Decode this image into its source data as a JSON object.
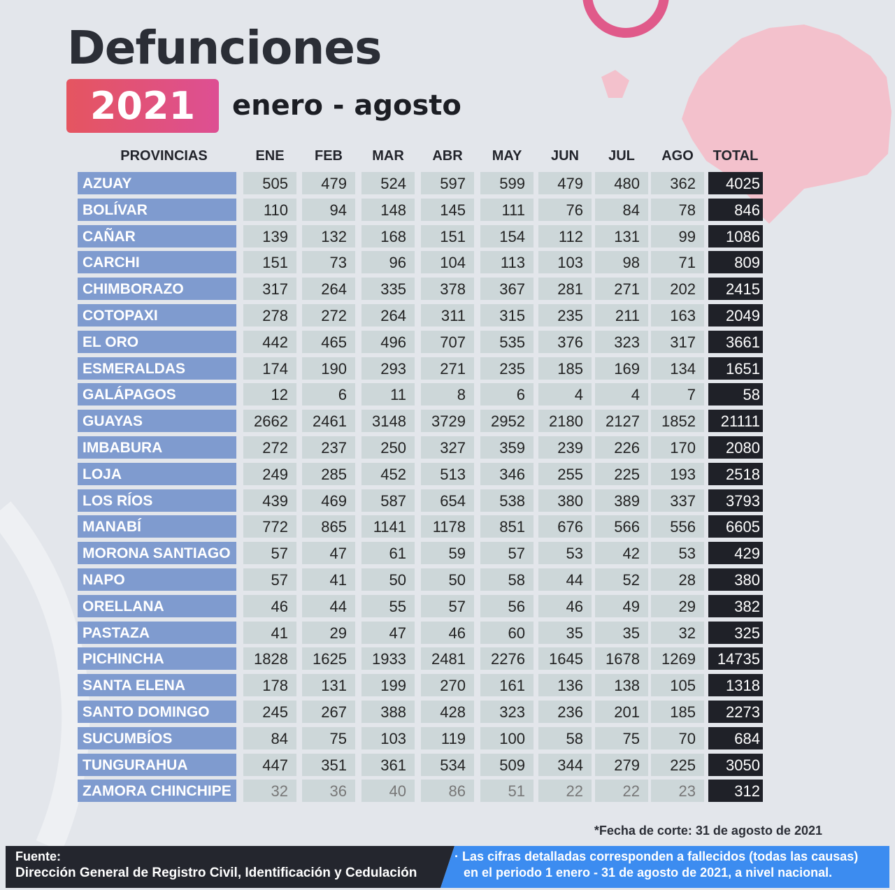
{
  "header": {
    "title": "Defunciones",
    "year": "2021",
    "period": "enero - agosto"
  },
  "table": {
    "columns": [
      "PROVINCIAS",
      "ENE",
      "FEB",
      "MAR",
      "ABR",
      "MAY",
      "JUN",
      "JUL",
      "AGO",
      "TOTAL"
    ],
    "rows": [
      [
        "AZUAY",
        505,
        479,
        524,
        597,
        599,
        479,
        480,
        362,
        4025
      ],
      [
        "BOLÍVAR",
        110,
        94,
        148,
        145,
        111,
        76,
        84,
        78,
        846
      ],
      [
        "CAÑAR",
        139,
        132,
        168,
        151,
        154,
        112,
        131,
        99,
        1086
      ],
      [
        "CARCHI",
        151,
        73,
        96,
        104,
        113,
        103,
        98,
        71,
        809
      ],
      [
        "CHIMBORAZO",
        317,
        264,
        335,
        378,
        367,
        281,
        271,
        202,
        2415
      ],
      [
        "COTOPAXI",
        278,
        272,
        264,
        311,
        315,
        235,
        211,
        163,
        2049
      ],
      [
        "EL ORO",
        442,
        465,
        496,
        707,
        535,
        376,
        323,
        317,
        3661
      ],
      [
        "ESMERALDAS",
        174,
        190,
        293,
        271,
        235,
        185,
        169,
        134,
        1651
      ],
      [
        "GALÁPAGOS",
        12,
        6,
        11,
        8,
        6,
        4,
        4,
        7,
        58
      ],
      [
        "GUAYAS",
        2662,
        2461,
        3148,
        3729,
        2952,
        2180,
        2127,
        1852,
        21111
      ],
      [
        "IMBABURA",
        272,
        237,
        250,
        327,
        359,
        239,
        226,
        170,
        2080
      ],
      [
        "LOJA",
        249,
        285,
        452,
        513,
        346,
        255,
        225,
        193,
        2518
      ],
      [
        "LOS RÍOS",
        439,
        469,
        587,
        654,
        538,
        380,
        389,
        337,
        3793
      ],
      [
        "MANABÍ",
        772,
        865,
        1141,
        1178,
        851,
        676,
        566,
        556,
        6605
      ],
      [
        "MORONA SANTIAGO",
        57,
        47,
        61,
        59,
        57,
        53,
        42,
        53,
        429
      ],
      [
        "NAPO",
        57,
        41,
        50,
        50,
        58,
        44,
        52,
        28,
        380
      ],
      [
        "ORELLANA",
        46,
        44,
        55,
        57,
        56,
        46,
        49,
        29,
        382
      ],
      [
        "PASTAZA",
        41,
        29,
        47,
        46,
        60,
        35,
        35,
        32,
        325
      ],
      [
        "PICHINCHA",
        1828,
        1625,
        1933,
        2481,
        2276,
        1645,
        1678,
        1269,
        14735
      ],
      [
        "SANTA ELENA",
        178,
        131,
        199,
        270,
        161,
        136,
        138,
        105,
        1318
      ],
      [
        "SANTO DOMINGO",
        245,
        267,
        388,
        428,
        323,
        236,
        201,
        185,
        2273
      ],
      [
        "SUCUMBÍOS",
        84,
        75,
        103,
        119,
        100,
        58,
        75,
        70,
        684
      ],
      [
        "TUNGURAHUA",
        447,
        351,
        361,
        534,
        509,
        344,
        279,
        225,
        3050
      ],
      [
        "ZAMORA CHINCHIPE",
        32,
        36,
        40,
        86,
        51,
        22,
        22,
        23,
        312
      ]
    ]
  },
  "footnote": "*Fecha de corte: 31 de agosto de 2021",
  "footer": {
    "source_label": "Fuente:",
    "source": "Dirección General de Registro Civil, Identificación y Cedulación",
    "note": [
      "· Las cifras detalladas corresponden a fallecidos (todas las causas)",
      "en el periodo 1 enero -  31 de agosto de 2021, a nivel nacional."
    ]
  }
}
